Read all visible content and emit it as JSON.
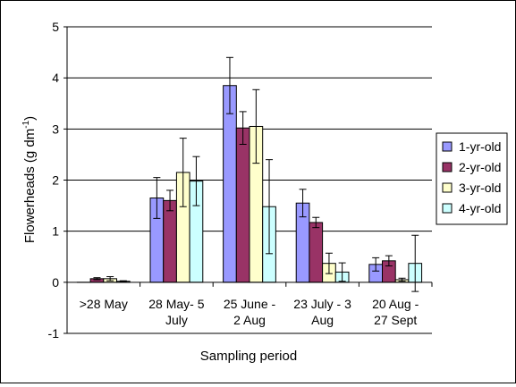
{
  "chart_data": {
    "type": "bar",
    "title": "",
    "xlabel": "Sampling period",
    "ylabel": "Flowerheads (g dm",
    "ylabel_sup": "-1",
    "ylabel_close": ")",
    "ylim": [
      -1,
      5
    ],
    "yticks": [
      -1,
      0,
      1,
      2,
      3,
      4,
      5
    ],
    "grid": true,
    "legend_position": "right",
    "categories": [
      [
        ">28 May"
      ],
      [
        "28 May- 5",
        "July"
      ],
      [
        "25 June -",
        "2 Aug"
      ],
      [
        "23 July - 3",
        "Aug"
      ],
      [
        "20 Aug -",
        "27 Sept"
      ]
    ],
    "series": [
      {
        "name": "1-yr-old",
        "color": "#9999ff",
        "values": [
          0,
          1.65,
          3.85,
          1.55,
          0.35
        ],
        "errors": [
          0,
          0.4,
          0.55,
          0.27,
          0.13
        ]
      },
      {
        "name": "2-yr-old",
        "color": "#993366",
        "values": [
          0.07,
          1.6,
          3.02,
          1.17,
          0.42
        ],
        "errors": [
          0.02,
          0.2,
          0.32,
          0.1,
          0.1
        ]
      },
      {
        "name": "3-yr-old",
        "color": "#ffffcc",
        "values": [
          0.07,
          2.15,
          3.05,
          0.37,
          0.05
        ],
        "errors": [
          0.04,
          0.67,
          0.72,
          0.2,
          0.03
        ]
      },
      {
        "name": "4-yr-old",
        "color": "#ccffff",
        "values": [
          0.02,
          1.98,
          1.48,
          0.2,
          0.37
        ],
        "errors": [
          0.01,
          0.48,
          0.92,
          0.18,
          0.55
        ]
      }
    ]
  }
}
